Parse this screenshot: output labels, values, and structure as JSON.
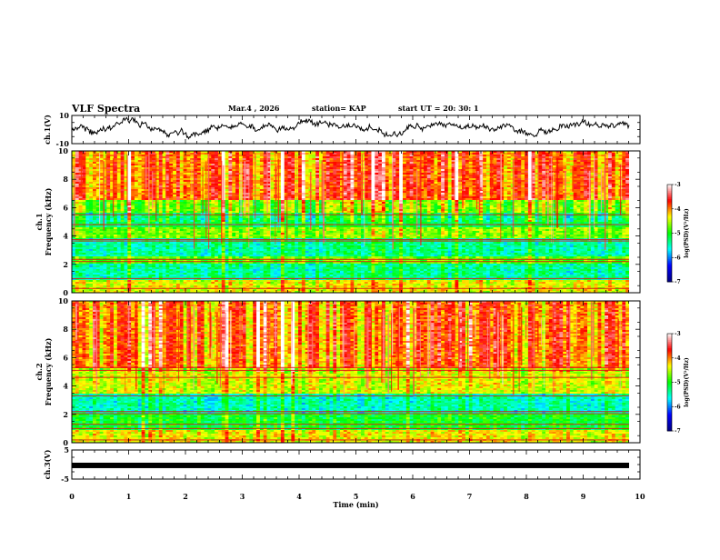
{
  "header": {
    "title": "VLF Spectra",
    "date": "Mar.4 , 2026",
    "station": "station= KAP",
    "start": "start UT = 20: 30: 1"
  },
  "chart_data": [
    {
      "type": "line",
      "name": "ch1-waveform",
      "ylabel": "ch.1(V)",
      "ylim": [
        -10,
        10
      ],
      "yticks": [
        "10",
        "-10"
      ],
      "xlim": [
        0,
        10
      ]
    },
    {
      "type": "heatmap",
      "name": "ch1-spectrogram",
      "ylabel_line1": "ch.1",
      "ylabel_line2": "Frequency (kHz)",
      "ylim": [
        0,
        10
      ],
      "yticks": [
        "10",
        "8",
        "6",
        "4",
        "2",
        "0"
      ],
      "xlim": [
        0,
        9.85
      ],
      "colorbar": {
        "label": "log(PSD)(V²/Hz)",
        "range": [
          -7,
          -3
        ],
        "ticks": [
          "-3",
          "-4",
          "-5",
          "-6",
          "-7"
        ]
      }
    },
    {
      "type": "heatmap",
      "name": "ch2-spectrogram",
      "ylabel_line1": "ch.2",
      "ylabel_line2": "Frequency (kHz)",
      "ylim": [
        0,
        10
      ],
      "yticks": [
        "10",
        "8",
        "6",
        "4",
        "2",
        "0"
      ],
      "xlim": [
        0,
        9.85
      ],
      "colorbar": {
        "label": "log(PSD)(V²/Hz)",
        "range": [
          -7,
          -3
        ],
        "ticks": [
          "-3",
          "-4",
          "-5",
          "-6",
          "-7"
        ]
      }
    },
    {
      "type": "line",
      "name": "ch3-waveform",
      "ylabel": "ch.3(V)",
      "ylim": [
        -5,
        5
      ],
      "yticks": [
        "5",
        "-5"
      ],
      "level": -0.3,
      "xlim": [
        0,
        9.85
      ]
    }
  ],
  "xaxis": {
    "label": "Time (min)",
    "ticks": [
      "0",
      "1",
      "2",
      "3",
      "4",
      "5",
      "6",
      "7",
      "8",
      "9",
      "10"
    ],
    "range": [
      0,
      10
    ]
  },
  "colors": {
    "colormap": [
      "#000080",
      "#0000ff",
      "#00ffff",
      "#00ff00",
      "#ffff00",
      "#ff0000",
      "#ffffff"
    ],
    "line": "#000000"
  }
}
